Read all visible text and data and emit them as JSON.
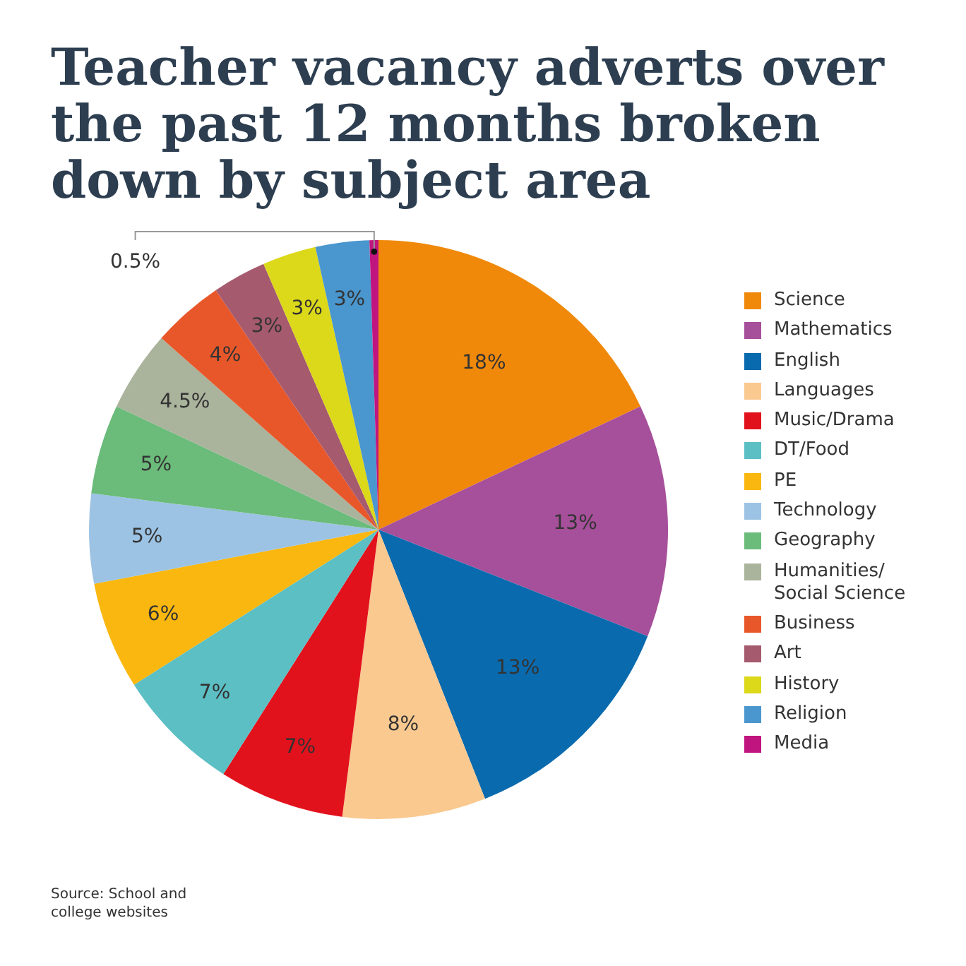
{
  "chart_data": {
    "type": "pie",
    "title": "Teacher vacancy adverts over the past 12 months broken down by subject area",
    "categories": [
      "Science",
      "Mathematics",
      "English",
      "Languages",
      "Music/Drama",
      "DT/Food",
      "PE",
      "Technology",
      "Geography",
      "Humanities/ Social Science",
      "Business",
      "Art",
      "History",
      "Religion",
      "Media"
    ],
    "values": [
      18,
      13,
      13,
      8,
      7,
      7,
      6,
      5,
      5,
      4.5,
      4,
      3,
      3,
      3,
      0.5
    ],
    "value_labels": [
      "18%",
      "13%",
      "13%",
      "8%",
      "7%",
      "7%",
      "6%",
      "5%",
      "5%",
      "4.5%",
      "4%",
      "3%",
      "3%",
      "3%",
      "0.5%"
    ],
    "colors": [
      "#f0890a",
      "#a64f9a",
      "#0a6aae",
      "#f9c98f",
      "#e2121d",
      "#5bbfc4",
      "#f9b70f",
      "#9cc3e3",
      "#6bbb7a",
      "#aab39c",
      "#e8572a",
      "#a55a6e",
      "#dcd81a",
      "#4a96ce",
      "#c0157f"
    ],
    "legend": "right",
    "annotations": [
      "Source: School and college websites"
    ]
  }
}
